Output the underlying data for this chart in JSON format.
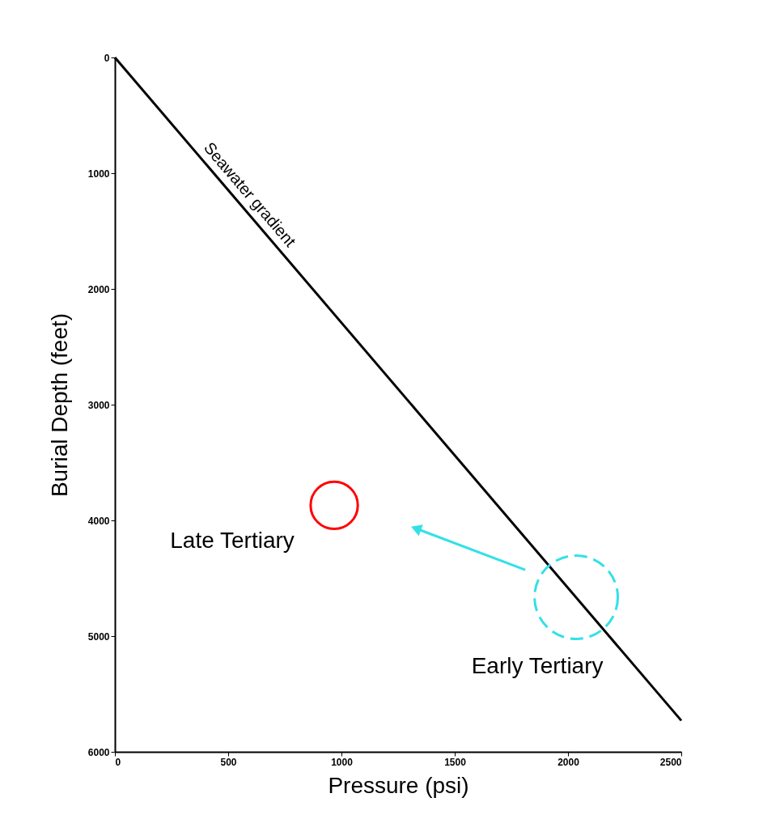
{
  "chart_data": {
    "type": "line",
    "xlabel": "Pressure (psi)",
    "ylabel": "Burial Depth (feet)",
    "xlim": [
      0,
      2500
    ],
    "xticks": [
      0,
      500,
      1000,
      1500,
      2000,
      2500
    ],
    "ylim": [
      6000,
      0
    ],
    "yticks": [
      0,
      1000,
      2000,
      3000,
      4000,
      5000,
      6000
    ],
    "grid": false,
    "legend": false,
    "series": [
      {
        "name": "Seawater gradient",
        "color": "#000000",
        "x": [
          0,
          2500
        ],
        "values": [
          0,
          5730
        ]
      },
      {
        "type": "scatter",
        "name": "Late Tertiary",
        "color": "#ff0000",
        "marker": "circle",
        "x": [
          968
        ],
        "values": [
          3870
        ]
      },
      {
        "type": "scatter",
        "name": "Early Tertiary",
        "color": "#33e0e8",
        "marker": "circle",
        "line_style": "dashed",
        "x": [
          2036
        ],
        "values": [
          4664
        ]
      },
      {
        "type": "line",
        "color": "#33e0e8",
        "marker": "triangle",
        "x": [
          1811,
          1329
        ],
        "values": [
          4427,
          4070
        ]
      }
    ]
  }
}
